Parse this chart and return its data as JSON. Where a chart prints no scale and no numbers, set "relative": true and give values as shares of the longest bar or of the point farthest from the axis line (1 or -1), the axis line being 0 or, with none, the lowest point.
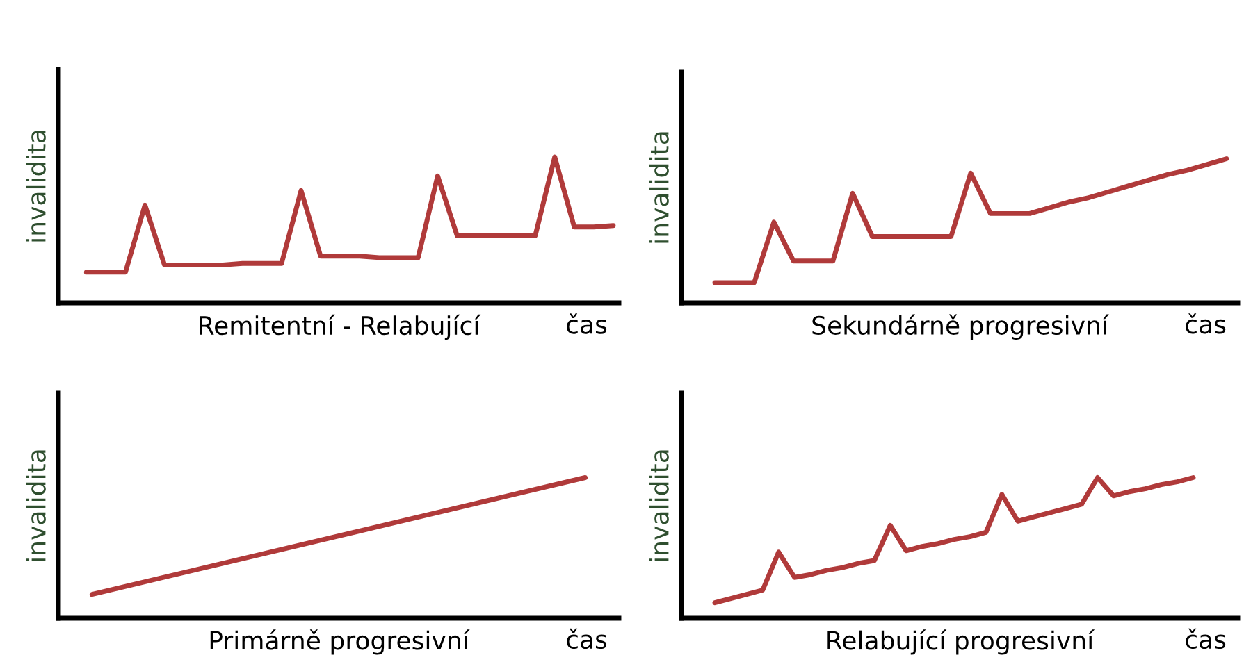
{
  "chart_data": [
    {
      "type": "line",
      "title": "Remitentní - Relabující",
      "xlabel": "čas",
      "ylabel": "invalidita",
      "relative": true,
      "tick_labels": false,
      "categories": [
        null,
        null,
        null,
        null,
        null,
        null,
        null,
        null,
        null,
        null,
        null,
        null,
        null,
        null,
        null,
        null,
        null,
        null,
        null,
        null,
        null,
        null,
        null,
        null,
        null,
        null,
        null,
        null
      ],
      "series": [
        {
          "color": "#b03a3a",
          "values": [
            0.21,
            0.21,
            0.21,
            0.67,
            0.26,
            0.26,
            0.26,
            0.26,
            0.27,
            0.27,
            0.27,
            0.77,
            0.32,
            0.32,
            0.32,
            0.31,
            0.31,
            0.31,
            0.87,
            0.46,
            0.46,
            0.46,
            0.46,
            0.46,
            1,
            0.52,
            0.52,
            0.53
          ]
        }
      ]
    },
    {
      "type": "line",
      "title": "Sekundárně progresivní",
      "xlabel": "čas",
      "ylabel": "invalidita",
      "relative": true,
      "tick_labels": false,
      "categories": [
        null,
        null,
        null,
        null,
        null,
        null,
        null,
        null,
        null,
        null,
        null,
        null,
        null,
        null,
        null,
        null,
        null,
        null,
        null,
        null,
        null,
        null,
        null,
        null,
        null,
        null,
        null
      ],
      "series": [
        {
          "color": "#b03a3a",
          "values": [
            0.14,
            0.14,
            0.14,
            0.56,
            0.29,
            0.29,
            0.29,
            0.76,
            0.46,
            0.46,
            0.46,
            0.46,
            0.46,
            0.9,
            0.62,
            0.62,
            0.62,
            0.66,
            0.7,
            0.73,
            0.77,
            0.81,
            0.85,
            0.89,
            0.92,
            0.96,
            1
          ]
        }
      ]
    },
    {
      "type": "line",
      "title": "Primárně progresivní",
      "xlabel": "čas",
      "ylabel": "invalidita",
      "relative": true,
      "tick_labels": false,
      "categories": [
        null,
        null
      ],
      "series": [
        {
          "color": "#b03a3a",
          "values": [
            0.17,
            1
          ]
        }
      ]
    },
    {
      "type": "line",
      "title": "Relabující progresivní",
      "xlabel": "čas",
      "ylabel": "invalidita",
      "relative": true,
      "tick_labels": false,
      "categories": [
        null,
        null,
        null,
        null,
        null,
        null,
        null,
        null,
        null,
        null,
        null,
        null,
        null,
        null,
        null,
        null,
        null,
        null,
        null,
        null,
        null,
        null,
        null,
        null,
        null,
        null,
        null,
        null,
        null,
        null,
        null
      ],
      "series": [
        {
          "color": "#b03a3a",
          "values": [
            0.11,
            0.14,
            0.17,
            0.2,
            0.47,
            0.29,
            0.31,
            0.34,
            0.36,
            0.39,
            0.41,
            0.66,
            0.48,
            0.51,
            0.53,
            0.56,
            0.58,
            0.61,
            0.88,
            0.69,
            0.72,
            0.75,
            0.78,
            0.81,
            1,
            0.87,
            0.9,
            0.92,
            0.95,
            0.97,
            1
          ]
        }
      ]
    }
  ]
}
